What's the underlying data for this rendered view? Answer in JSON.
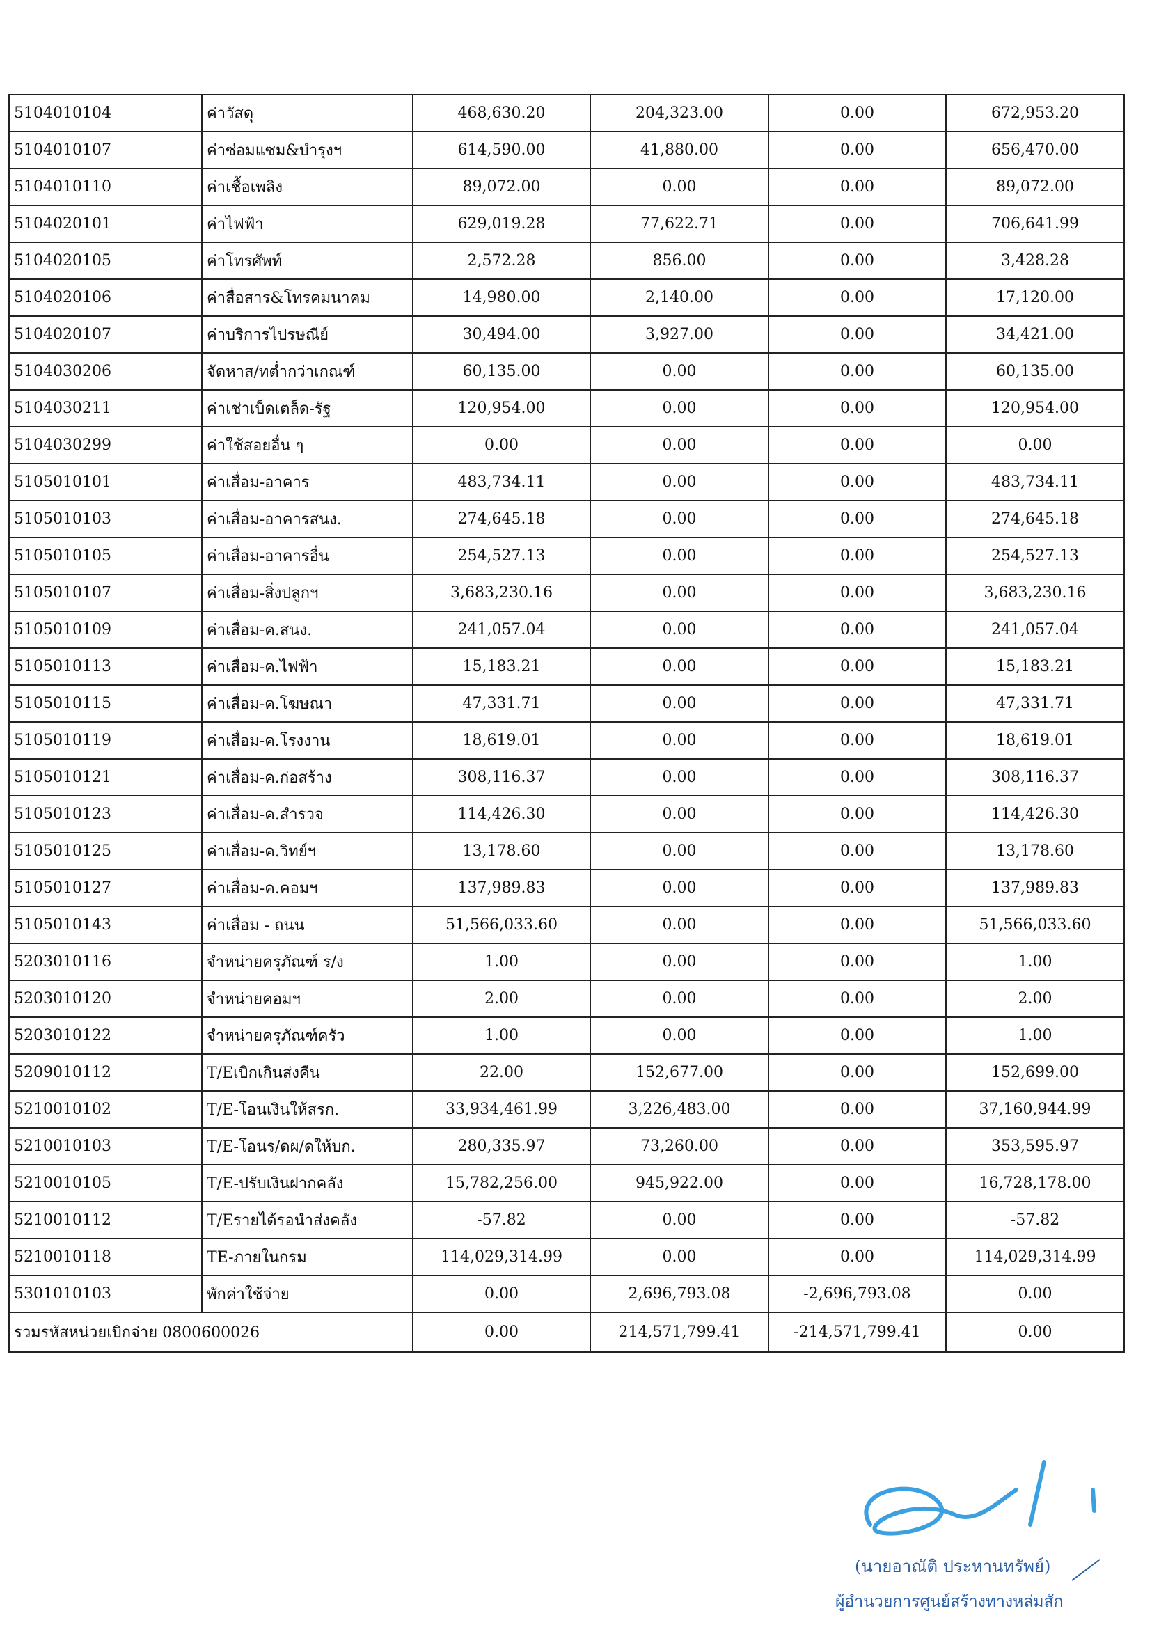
{
  "table": {
    "rows": [
      [
        "5104010104",
        "ค่าวัสดุ",
        "468,630.20",
        "204,323.00",
        "0.00",
        "672,953.20"
      ],
      [
        "5104010107",
        "ค่าซ่อมแซม&บำรุงฯ",
        "614,590.00",
        "41,880.00",
        "0.00",
        "656,470.00"
      ],
      [
        "5104010110",
        "ค่าเชื้อเพลิง",
        "89,072.00",
        "0.00",
        "0.00",
        "89,072.00"
      ],
      [
        "5104020101",
        "ค่าไฟฟ้า",
        "629,019.28",
        "77,622.71",
        "0.00",
        "706,641.99"
      ],
      [
        "5104020105",
        "ค่าโทรศัพท์",
        "2,572.28",
        "856.00",
        "0.00",
        "3,428.28"
      ],
      [
        "5104020106",
        "ค่าสื่อสาร&โทรคมนาคม",
        "14,980.00",
        "2,140.00",
        "0.00",
        "17,120.00"
      ],
      [
        "5104020107",
        "ค่าบริการไปรษณีย์",
        "30,494.00",
        "3,927.00",
        "0.00",
        "34,421.00"
      ],
      [
        "5104030206",
        "จัดหาส/ทต่ำกว่าเกณฑ์",
        "60,135.00",
        "0.00",
        "0.00",
        "60,135.00"
      ],
      [
        "5104030211",
        "ค่าเช่าเบ็ดเตล็ด-รัฐ",
        "120,954.00",
        "0.00",
        "0.00",
        "120,954.00"
      ],
      [
        "5104030299",
        "ค่าใช้สอยอื่น ๆ",
        "0.00",
        "0.00",
        "0.00",
        "0.00"
      ],
      [
        "5105010101",
        "ค่าเสื่อม-อาคาร",
        "483,734.11",
        "0.00",
        "0.00",
        "483,734.11"
      ],
      [
        "5105010103",
        "ค่าเสื่อม-อาคารสนง.",
        "274,645.18",
        "0.00",
        "0.00",
        "274,645.18"
      ],
      [
        "5105010105",
        "ค่าเสื่อม-อาคารอื่น",
        "254,527.13",
        "0.00",
        "0.00",
        "254,527.13"
      ],
      [
        "5105010107",
        "ค่าเสื่อม-สิ่งปลูกฯ",
        "3,683,230.16",
        "0.00",
        "0.00",
        "3,683,230.16"
      ],
      [
        "5105010109",
        "ค่าเสื่อม-ค.สนง.",
        "241,057.04",
        "0.00",
        "0.00",
        "241,057.04"
      ],
      [
        "5105010113",
        "ค่าเสื่อม-ค.ไฟฟ้า",
        "15,183.21",
        "0.00",
        "0.00",
        "15,183.21"
      ],
      [
        "5105010115",
        "ค่าเสื่อม-ค.โฆษณา",
        "47,331.71",
        "0.00",
        "0.00",
        "47,331.71"
      ],
      [
        "5105010119",
        "ค่าเสื่อม-ค.โรงงาน",
        "18,619.01",
        "0.00",
        "0.00",
        "18,619.01"
      ],
      [
        "5105010121",
        "ค่าเสื่อม-ค.ก่อสร้าง",
        "308,116.37",
        "0.00",
        "0.00",
        "308,116.37"
      ],
      [
        "5105010123",
        "ค่าเสื่อม-ค.สำรวจ",
        "114,426.30",
        "0.00",
        "0.00",
        "114,426.30"
      ],
      [
        "5105010125",
        "ค่าเสื่อม-ค.วิทย์ฯ",
        "13,178.60",
        "0.00",
        "0.00",
        "13,178.60"
      ],
      [
        "5105010127",
        "ค่าเสื่อม-ค.คอมฯ",
        "137,989.83",
        "0.00",
        "0.00",
        "137,989.83"
      ],
      [
        "5105010143",
        "ค่าเสื่อม - ถนน",
        "51,566,033.60",
        "0.00",
        "0.00",
        "51,566,033.60"
      ],
      [
        "5203010116",
        "จำหน่ายครุภัณฑ์ ร/ง",
        "1.00",
        "0.00",
        "0.00",
        "1.00"
      ],
      [
        "5203010120",
        "จำหน่ายคอมฯ",
        "2.00",
        "0.00",
        "0.00",
        "2.00"
      ],
      [
        "5203010122",
        "จำหน่ายครุภัณฑ์ครัว",
        "1.00",
        "0.00",
        "0.00",
        "1.00"
      ],
      [
        "5209010112",
        "T/Eเบิกเกินส่งคืน",
        "22.00",
        "152,677.00",
        "0.00",
        "152,699.00"
      ],
      [
        "5210010102",
        "T/E-โอนเงินให้สรก.",
        "33,934,461.99",
        "3,226,483.00",
        "0.00",
        "37,160,944.99"
      ],
      [
        "5210010103",
        "T/E-โอนร/ดผ/ดให้บก.",
        "280,335.97",
        "73,260.00",
        "0.00",
        "353,595.97"
      ],
      [
        "5210010105",
        "T/E-ปรับเงินฝากคลัง",
        "15,782,256.00",
        "945,922.00",
        "0.00",
        "16,728,178.00"
      ],
      [
        "5210010112",
        "T/Eรายได้รอนำส่งคลัง",
        "-57.82",
        "0.00",
        "0.00",
        "-57.82"
      ],
      [
        "5210010118",
        "TE-ภายในกรม",
        "114,029,314.99",
        "0.00",
        "0.00",
        "114,029,314.99"
      ],
      [
        "5301010103",
        "พักค่าใช้จ่าย",
        "0.00",
        "2,696,793.08",
        "-2,696,793.08",
        "0.00"
      ]
    ],
    "total": [
      "รวมรหัสหน่วยเบิกจ่าย 0800600026",
      "0.00",
      "214,571,799.41",
      "-214,571,799.41",
      "0.00"
    ]
  },
  "signature": {
    "name": "(นายอาณัติ ประหานทรัพย์)",
    "position": "ผู้อำนวยการศูนย์สร้างทางหล่มสัก"
  }
}
